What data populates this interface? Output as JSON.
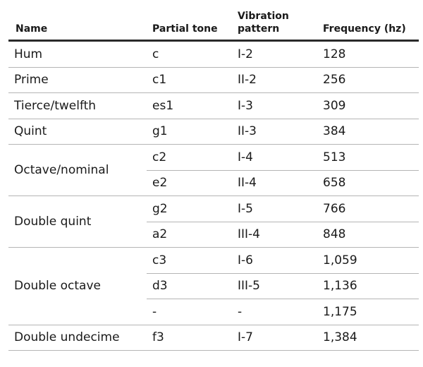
{
  "table": {
    "headers": {
      "name": "Name",
      "partial_tone": "Partial tone",
      "vibration_pattern": "Vibration pattern",
      "frequency": "Frequency (hz)"
    },
    "groups": [
      {
        "name": "Hum",
        "rows": [
          {
            "tone": "c",
            "pattern": "I-2",
            "freq": "128"
          }
        ]
      },
      {
        "name": "Prime",
        "rows": [
          {
            "tone": "c1",
            "pattern": "II-2",
            "freq": "256"
          }
        ]
      },
      {
        "name": "Tierce/twelfth",
        "rows": [
          {
            "tone": "es1",
            "pattern": "I-3",
            "freq": "309"
          }
        ]
      },
      {
        "name": "Quint",
        "rows": [
          {
            "tone": "g1",
            "pattern": "II-3",
            "freq": "384"
          }
        ]
      },
      {
        "name": "Octave/nominal",
        "rows": [
          {
            "tone": "c2",
            "pattern": "I-4",
            "freq": "513"
          },
          {
            "tone": "e2",
            "pattern": "II-4",
            "freq": "658"
          }
        ]
      },
      {
        "name": "Double quint",
        "rows": [
          {
            "tone": "g2",
            "pattern": "I-5",
            "freq": "766"
          },
          {
            "tone": "a2",
            "pattern": "III-4",
            "freq": "848"
          }
        ]
      },
      {
        "name": "Double octave",
        "rows": [
          {
            "tone": "c3",
            "pattern": "I-6",
            "freq": "1,059"
          },
          {
            "tone": "d3",
            "pattern": "III-5",
            "freq": "1,136"
          },
          {
            "tone": "-",
            "pattern": "-",
            "freq": "1,175"
          }
        ]
      },
      {
        "name": "Double undecime",
        "rows": [
          {
            "tone": "f3",
            "pattern": "I-7",
            "freq": "1,384"
          }
        ]
      }
    ]
  }
}
